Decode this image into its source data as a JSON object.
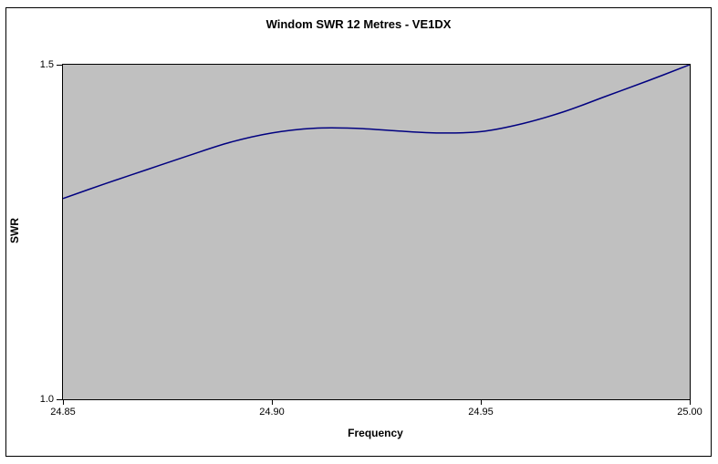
{
  "chart": {
    "title": "Windom SWR 12 Metres - VE1DX",
    "x_axis_title": "Frequency",
    "y_axis_title": "SWR"
  },
  "colors": {
    "line": "#000080",
    "plot_fill": "#C0C0C0",
    "plot_border": "#000000",
    "text": "#000000",
    "background": "#FFFFFF"
  },
  "chart_data": {
    "type": "line",
    "title": "Windom SWR 12 Metres - VE1DX",
    "xlabel": "Frequency",
    "ylabel": "SWR",
    "xlim": [
      24.85,
      25.0
    ],
    "ylim": [
      1.0,
      1.5
    ],
    "x_ticks": [
      24.85,
      24.9,
      24.95,
      25.0
    ],
    "x_tick_labels": [
      "24.85",
      "24.90",
      "24.95",
      "25.00"
    ],
    "y_ticks": [
      1.0,
      1.5
    ],
    "y_tick_labels": [
      "1.0",
      "1.5"
    ],
    "grid": false,
    "legend": "none",
    "plot_area_fill": "#C0C0C0",
    "series": [
      {
        "name": "SWR",
        "color": "#000080",
        "x": [
          24.85,
          24.86,
          24.87,
          24.88,
          24.89,
          24.9,
          24.91,
          24.92,
          24.93,
          24.94,
          24.95,
          24.96,
          24.97,
          24.98,
          24.99,
          25.0
        ],
        "y": [
          1.3,
          1.322,
          1.343,
          1.364,
          1.384,
          1.398,
          1.405,
          1.405,
          1.401,
          1.398,
          1.4,
          1.412,
          1.43,
          1.453,
          1.476,
          1.5
        ]
      }
    ]
  }
}
